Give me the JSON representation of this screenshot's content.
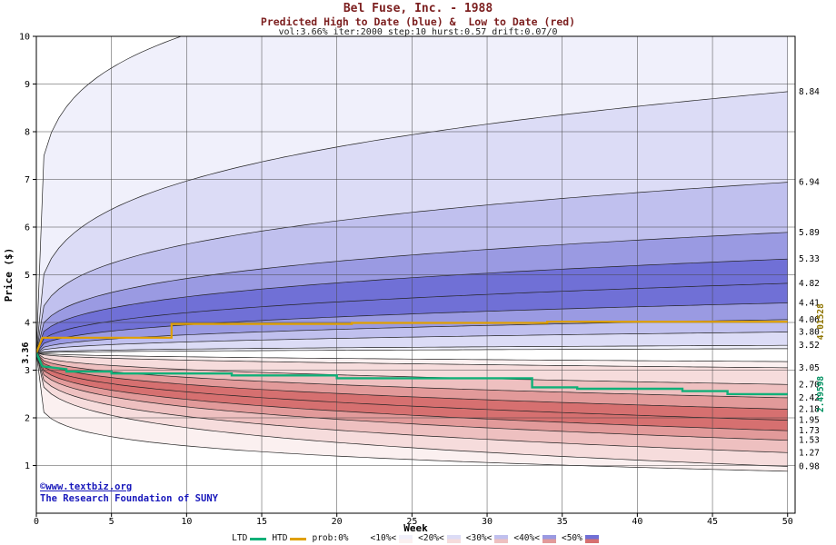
{
  "header": {
    "title": "Bel Fuse, Inc. - 1988",
    "subtitle": "Predicted High to Date (blue) &  Low to Date (red)",
    "params": "vol:3.66% iter:2000 step:10 hurst:0.57 drift:0.07/0"
  },
  "footer": {
    "site": "©www.textbiz.org",
    "org": "The Research Foundation of SUNY"
  },
  "legend": {
    "ltd_label": "LTD",
    "htd_label": "HTD",
    "prob_items": [
      {
        "label": "prob:0%",
        "blue": "#ffffff",
        "red": "#ffffff"
      },
      {
        "label": "<10%<",
        "blue": "#f0f0fb",
        "red": "#fbf0f0"
      },
      {
        "label": "<20%<",
        "blue": "#dcdcf6",
        "red": "#f6dcdc"
      },
      {
        "label": "<30%<",
        "blue": "#c0c0ee",
        "red": "#eec0c0"
      },
      {
        "label": "<40%<",
        "blue": "#9a9ae2",
        "red": "#e29a9a"
      },
      {
        "label": "<50%",
        "blue": "#7070d6",
        "red": "#d67070"
      }
    ]
  },
  "chart_data": {
    "type": "area",
    "title": "Bel Fuse, Inc. - 1988",
    "subtitle": "Predicted High to Date (blue) &  Low to Date (red)",
    "params": "vol:3.66% iter:2000 step:10 hurst:0.57 drift:0.07/0",
    "xlabel": "Week",
    "ylabel": "Price ($)",
    "xlim": [
      0,
      50.5
    ],
    "ylim": [
      0,
      10
    ],
    "x_ticks": [
      0,
      5,
      10,
      15,
      20,
      25,
      30,
      35,
      40,
      45,
      50
    ],
    "y_ticks": [
      1,
      2,
      3,
      4,
      5,
      6,
      7,
      8,
      9,
      10
    ],
    "start_price": 3.36,
    "start_label": "3.36",
    "end_week": 50,
    "high_fan": {
      "name": "predicted high-to-date quantiles (week-50 values)",
      "curves": [
        {
          "end": 12.0,
          "alpha": 0.16,
          "label": null
        },
        {
          "end": 8.84,
          "alpha": 0.26,
          "label": "8.84"
        },
        {
          "end": 6.94,
          "alpha": 0.28,
          "label": "6.94"
        },
        {
          "end": 5.89,
          "alpha": 0.3,
          "label": "5.89"
        },
        {
          "end": 5.33,
          "alpha": 0.32,
          "label": "5.33"
        },
        {
          "end": 4.82,
          "alpha": 0.34,
          "label": "4.82"
        },
        {
          "end": 4.41,
          "alpha": 0.36,
          "label": "4.41"
        },
        {
          "end": 4.06,
          "alpha": 0.38,
          "label": "4.06"
        },
        {
          "end": 3.8,
          "alpha": 0.4,
          "label": "3.80"
        },
        {
          "end": 3.52,
          "alpha": 0.42,
          "label": "3.52"
        },
        {
          "end": 3.45,
          "alpha": 0.5,
          "label": null
        }
      ],
      "band_colors": [
        "#f0f0fb",
        "#dcdcf6",
        "#c0c0ee",
        "#9a9ae2",
        "#7070d6",
        "#7070d6",
        "#9a9ae2",
        "#c0c0ee",
        "#dcdcf6",
        "#f0f0fb"
      ]
    },
    "low_fan": {
      "name": "predicted low-to-date quantiles (week-50 values)",
      "curves": [
        {
          "end": 3.18,
          "alpha": 0.5,
          "label": null
        },
        {
          "end": 3.05,
          "alpha": 0.45,
          "label": "3.05"
        },
        {
          "end": 2.7,
          "alpha": 0.4,
          "label": "2.70"
        },
        {
          "end": 2.42,
          "alpha": 0.38,
          "label": "2.42"
        },
        {
          "end": 2.18,
          "alpha": 0.36,
          "label": "2.18"
        },
        {
          "end": 1.95,
          "alpha": 0.34,
          "label": "1.95"
        },
        {
          "end": 1.73,
          "alpha": 0.32,
          "label": "1.73"
        },
        {
          "end": 1.53,
          "alpha": 0.3,
          "label": "1.53"
        },
        {
          "end": 1.27,
          "alpha": 0.28,
          "label": "1.27"
        },
        {
          "end": 0.98,
          "alpha": 0.26,
          "label": "0.98"
        },
        {
          "end": 0.88,
          "alpha": 0.15,
          "label": null
        }
      ],
      "band_colors": [
        "#fbf0f0",
        "#f6dcdc",
        "#eec0c0",
        "#e29a9a",
        "#d67070",
        "#d67070",
        "#e29a9a",
        "#eec0c0",
        "#f6dcdc",
        "#fbf0f0"
      ]
    },
    "htd_line": {
      "name": "actual high to date",
      "color": "#e0a000",
      "label_color": "#8f7500",
      "end_label": "4.01528",
      "points": [
        [
          0,
          3.36
        ],
        [
          0.4,
          3.68
        ],
        [
          9,
          3.68
        ],
        [
          9,
          3.97
        ],
        [
          21,
          3.97
        ],
        [
          21,
          3.99
        ],
        [
          34,
          3.99
        ],
        [
          34,
          4.015
        ],
        [
          50,
          4.015
        ]
      ]
    },
    "ltd_line": {
      "name": "actual low to date",
      "color": "#10b078",
      "label_color": "#009060",
      "end_label": "2.49598",
      "points": [
        [
          0,
          3.36
        ],
        [
          0.4,
          3.08
        ],
        [
          2,
          3.02
        ],
        [
          2,
          2.97
        ],
        [
          5,
          2.97
        ],
        [
          5,
          2.93
        ],
        [
          13,
          2.93
        ],
        [
          13,
          2.89
        ],
        [
          20,
          2.89
        ],
        [
          20,
          2.83
        ],
        [
          33,
          2.83
        ],
        [
          33,
          2.64
        ],
        [
          36,
          2.64
        ],
        [
          36,
          2.61
        ],
        [
          43,
          2.61
        ],
        [
          43,
          2.56
        ],
        [
          46,
          2.56
        ],
        [
          46,
          2.5
        ],
        [
          50,
          2.496
        ]
      ]
    }
  }
}
